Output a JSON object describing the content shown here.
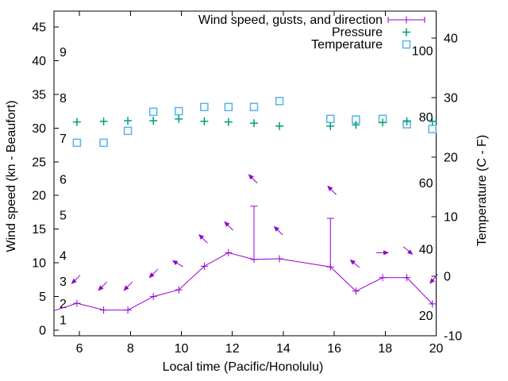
{
  "chart_data": {
    "type": "line",
    "title": "",
    "xlabel": "Local time (Pacific/Honolulu)",
    "ylabel_left": "Wind speed (kn - Beaufort)",
    "ylabel_right": "Temperature (C - F)",
    "grid": false,
    "x_range": [
      5,
      20
    ],
    "x_ticks": [
      6,
      8,
      10,
      12,
      14,
      16,
      18,
      20
    ],
    "y_left_range": [
      -0.82,
      47.35
    ],
    "y_left_ticks": [
      0,
      5,
      10,
      15,
      20,
      25,
      30,
      35,
      40,
      45
    ],
    "y_right_range": [
      -10,
      44.5
    ],
    "y_right_ticks": [
      -10,
      0,
      10,
      20,
      30,
      40
    ],
    "beaufort_scale_labels": [
      {
        "label": "1",
        "kn": 1.5
      },
      {
        "label": "2",
        "kn": 3.9
      },
      {
        "label": "3",
        "kn": 7.2
      },
      {
        "label": "4",
        "kn": 11.0
      },
      {
        "label": "5",
        "kn": 17.0
      },
      {
        "label": "6",
        "kn": 22.3
      },
      {
        "label": "7",
        "kn": 28.4
      },
      {
        "label": "8",
        "kn": 34.4
      },
      {
        "label": "9",
        "kn": 41.2
      }
    ],
    "fahrenheit_scale_labels": [
      {
        "label": "20",
        "c": -6.67
      },
      {
        "label": "40",
        "c": 4.44
      },
      {
        "label": "60",
        "c": 15.56
      },
      {
        "label": "80",
        "c": 26.67
      },
      {
        "label": "100",
        "c": 37.78
      }
    ],
    "legend": {
      "position": "top-right-inside",
      "entries": [
        {
          "series": "wind",
          "label": "Wind speed, gusts, and direction"
        },
        {
          "series": "pressure",
          "label": "Pressure"
        },
        {
          "series": "temperature",
          "label": "Temperature"
        }
      ]
    },
    "series": {
      "wind": {
        "label": "Wind speed, gusts, and direction",
        "color": "#9400d3",
        "axis": "left",
        "unit": "kn",
        "style": "line with plus markers, vertical gust bars and direction arrows",
        "points": [
          {
            "t": 5.0,
            "kn": 2.9,
            "marker": false
          },
          {
            "t": 5.9,
            "kn": 4.0
          },
          {
            "t": 6.95,
            "kn": 3.0
          },
          {
            "t": 7.9,
            "kn": 3.0
          },
          {
            "t": 8.9,
            "kn": 5.0
          },
          {
            "t": 9.9,
            "kn": 6.0
          },
          {
            "t": 10.9,
            "kn": 9.5
          },
          {
            "t": 11.85,
            "kn": 11.5
          },
          {
            "t": 12.85,
            "kn": 10.5,
            "gust_kn": 18.4
          },
          {
            "t": 13.85,
            "kn": 10.6
          },
          {
            "t": 15.85,
            "kn": 9.4,
            "gust_kn": 16.6
          },
          {
            "t": 16.85,
            "kn": 5.8
          },
          {
            "t": 17.9,
            "kn": 7.8
          },
          {
            "t": 18.85,
            "kn": 7.8
          },
          {
            "t": 19.85,
            "kn": 3.9
          }
        ],
        "direction_arrows": [
          {
            "t": 5.85,
            "kn": 7.5,
            "angle_deg": 225
          },
          {
            "t": 6.9,
            "kn": 6.5,
            "angle_deg": 225
          },
          {
            "t": 7.9,
            "kn": 6.5,
            "angle_deg": 225
          },
          {
            "t": 8.9,
            "kn": 8.4,
            "angle_deg": 225
          },
          {
            "t": 9.85,
            "kn": 9.9,
            "angle_deg": 150
          },
          {
            "t": 10.85,
            "kn": 13.6,
            "angle_deg": 135
          },
          {
            "t": 11.85,
            "kn": 15.5,
            "angle_deg": 135
          },
          {
            "t": 12.8,
            "kn": 22.5,
            "angle_deg": 135
          },
          {
            "t": 13.8,
            "kn": 14.8,
            "angle_deg": 135
          },
          {
            "t": 15.9,
            "kn": 20.8,
            "angle_deg": 135
          },
          {
            "t": 16.8,
            "kn": 9.9,
            "angle_deg": 140
          },
          {
            "t": 17.9,
            "kn": 11.5,
            "angle_deg": 0
          },
          {
            "t": 18.9,
            "kn": 11.8,
            "angle_deg": -40
          },
          {
            "t": 19.9,
            "kn": 7.6,
            "angle_deg": 230
          }
        ]
      },
      "pressure": {
        "label": "Pressure",
        "color": "#009e73",
        "axis": "right",
        "marker": "plus",
        "points": [
          [
            5.9,
            25.9
          ],
          [
            6.95,
            26.0
          ],
          [
            7.9,
            26.1
          ],
          [
            8.9,
            26.1
          ],
          [
            9.9,
            26.4
          ],
          [
            10.9,
            26.0
          ],
          [
            11.85,
            25.9
          ],
          [
            12.85,
            25.7
          ],
          [
            13.85,
            25.2
          ],
          [
            15.85,
            25.2
          ],
          [
            16.85,
            25.4
          ],
          [
            17.9,
            25.8
          ],
          [
            18.85,
            26.0
          ],
          [
            19.85,
            26.0
          ]
        ]
      },
      "temperature": {
        "label": "Temperature",
        "color": "#56b4e9",
        "axis": "right",
        "marker": "open-square",
        "unit": "C",
        "points": [
          [
            5.9,
            22.4
          ],
          [
            6.95,
            22.4
          ],
          [
            7.9,
            24.4
          ],
          [
            8.9,
            27.6
          ],
          [
            9.9,
            27.7
          ],
          [
            10.9,
            28.4
          ],
          [
            11.85,
            28.4
          ],
          [
            12.85,
            28.4
          ],
          [
            13.85,
            29.4
          ],
          [
            15.85,
            26.4
          ],
          [
            16.85,
            26.3
          ],
          [
            17.9,
            26.4
          ],
          [
            18.85,
            25.5
          ],
          [
            19.85,
            24.7
          ]
        ]
      }
    }
  }
}
